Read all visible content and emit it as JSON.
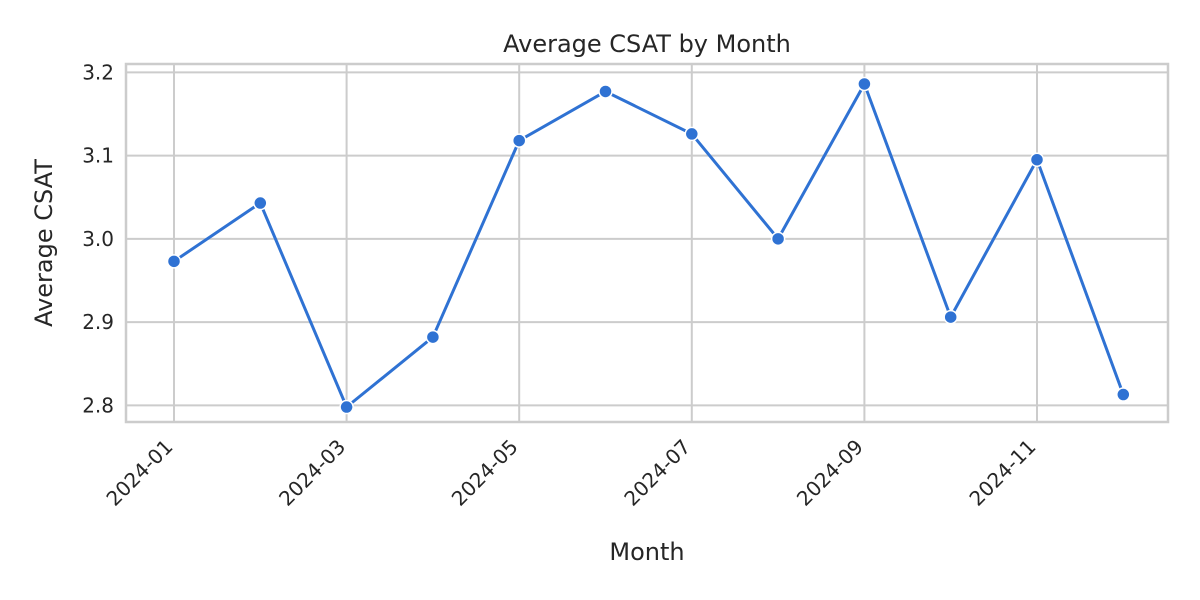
{
  "colors": {
    "series": "#2f72d3",
    "grid": "#cccccc",
    "text": "#262626",
    "background": "#ffffff"
  },
  "chart_data": {
    "type": "line",
    "title": "Average CSAT by Month",
    "xlabel": "Month",
    "ylabel": "Average CSAT",
    "x": [
      "2024-01",
      "2024-02",
      "2024-03",
      "2024-04",
      "2024-05",
      "2024-06",
      "2024-07",
      "2024-08",
      "2024-09",
      "2024-10",
      "2024-11",
      "2024-12"
    ],
    "xticks": [
      "2024-01",
      "2024-03",
      "2024-05",
      "2024-07",
      "2024-09",
      "2024-11"
    ],
    "series": [
      {
        "values": [
          2.973,
          3.043,
          2.798,
          2.882,
          3.118,
          3.177,
          3.126,
          3.0,
          3.186,
          2.906,
          3.095,
          2.813
        ]
      }
    ],
    "yticks": [
      2.8,
      2.9,
      3.0,
      3.1,
      3.2
    ],
    "ytick_labels": [
      "2.8",
      "2.9",
      "3.0",
      "3.1",
      "3.2"
    ],
    "ylim": [
      2.78,
      3.21
    ],
    "grid": true,
    "markers": true
  }
}
